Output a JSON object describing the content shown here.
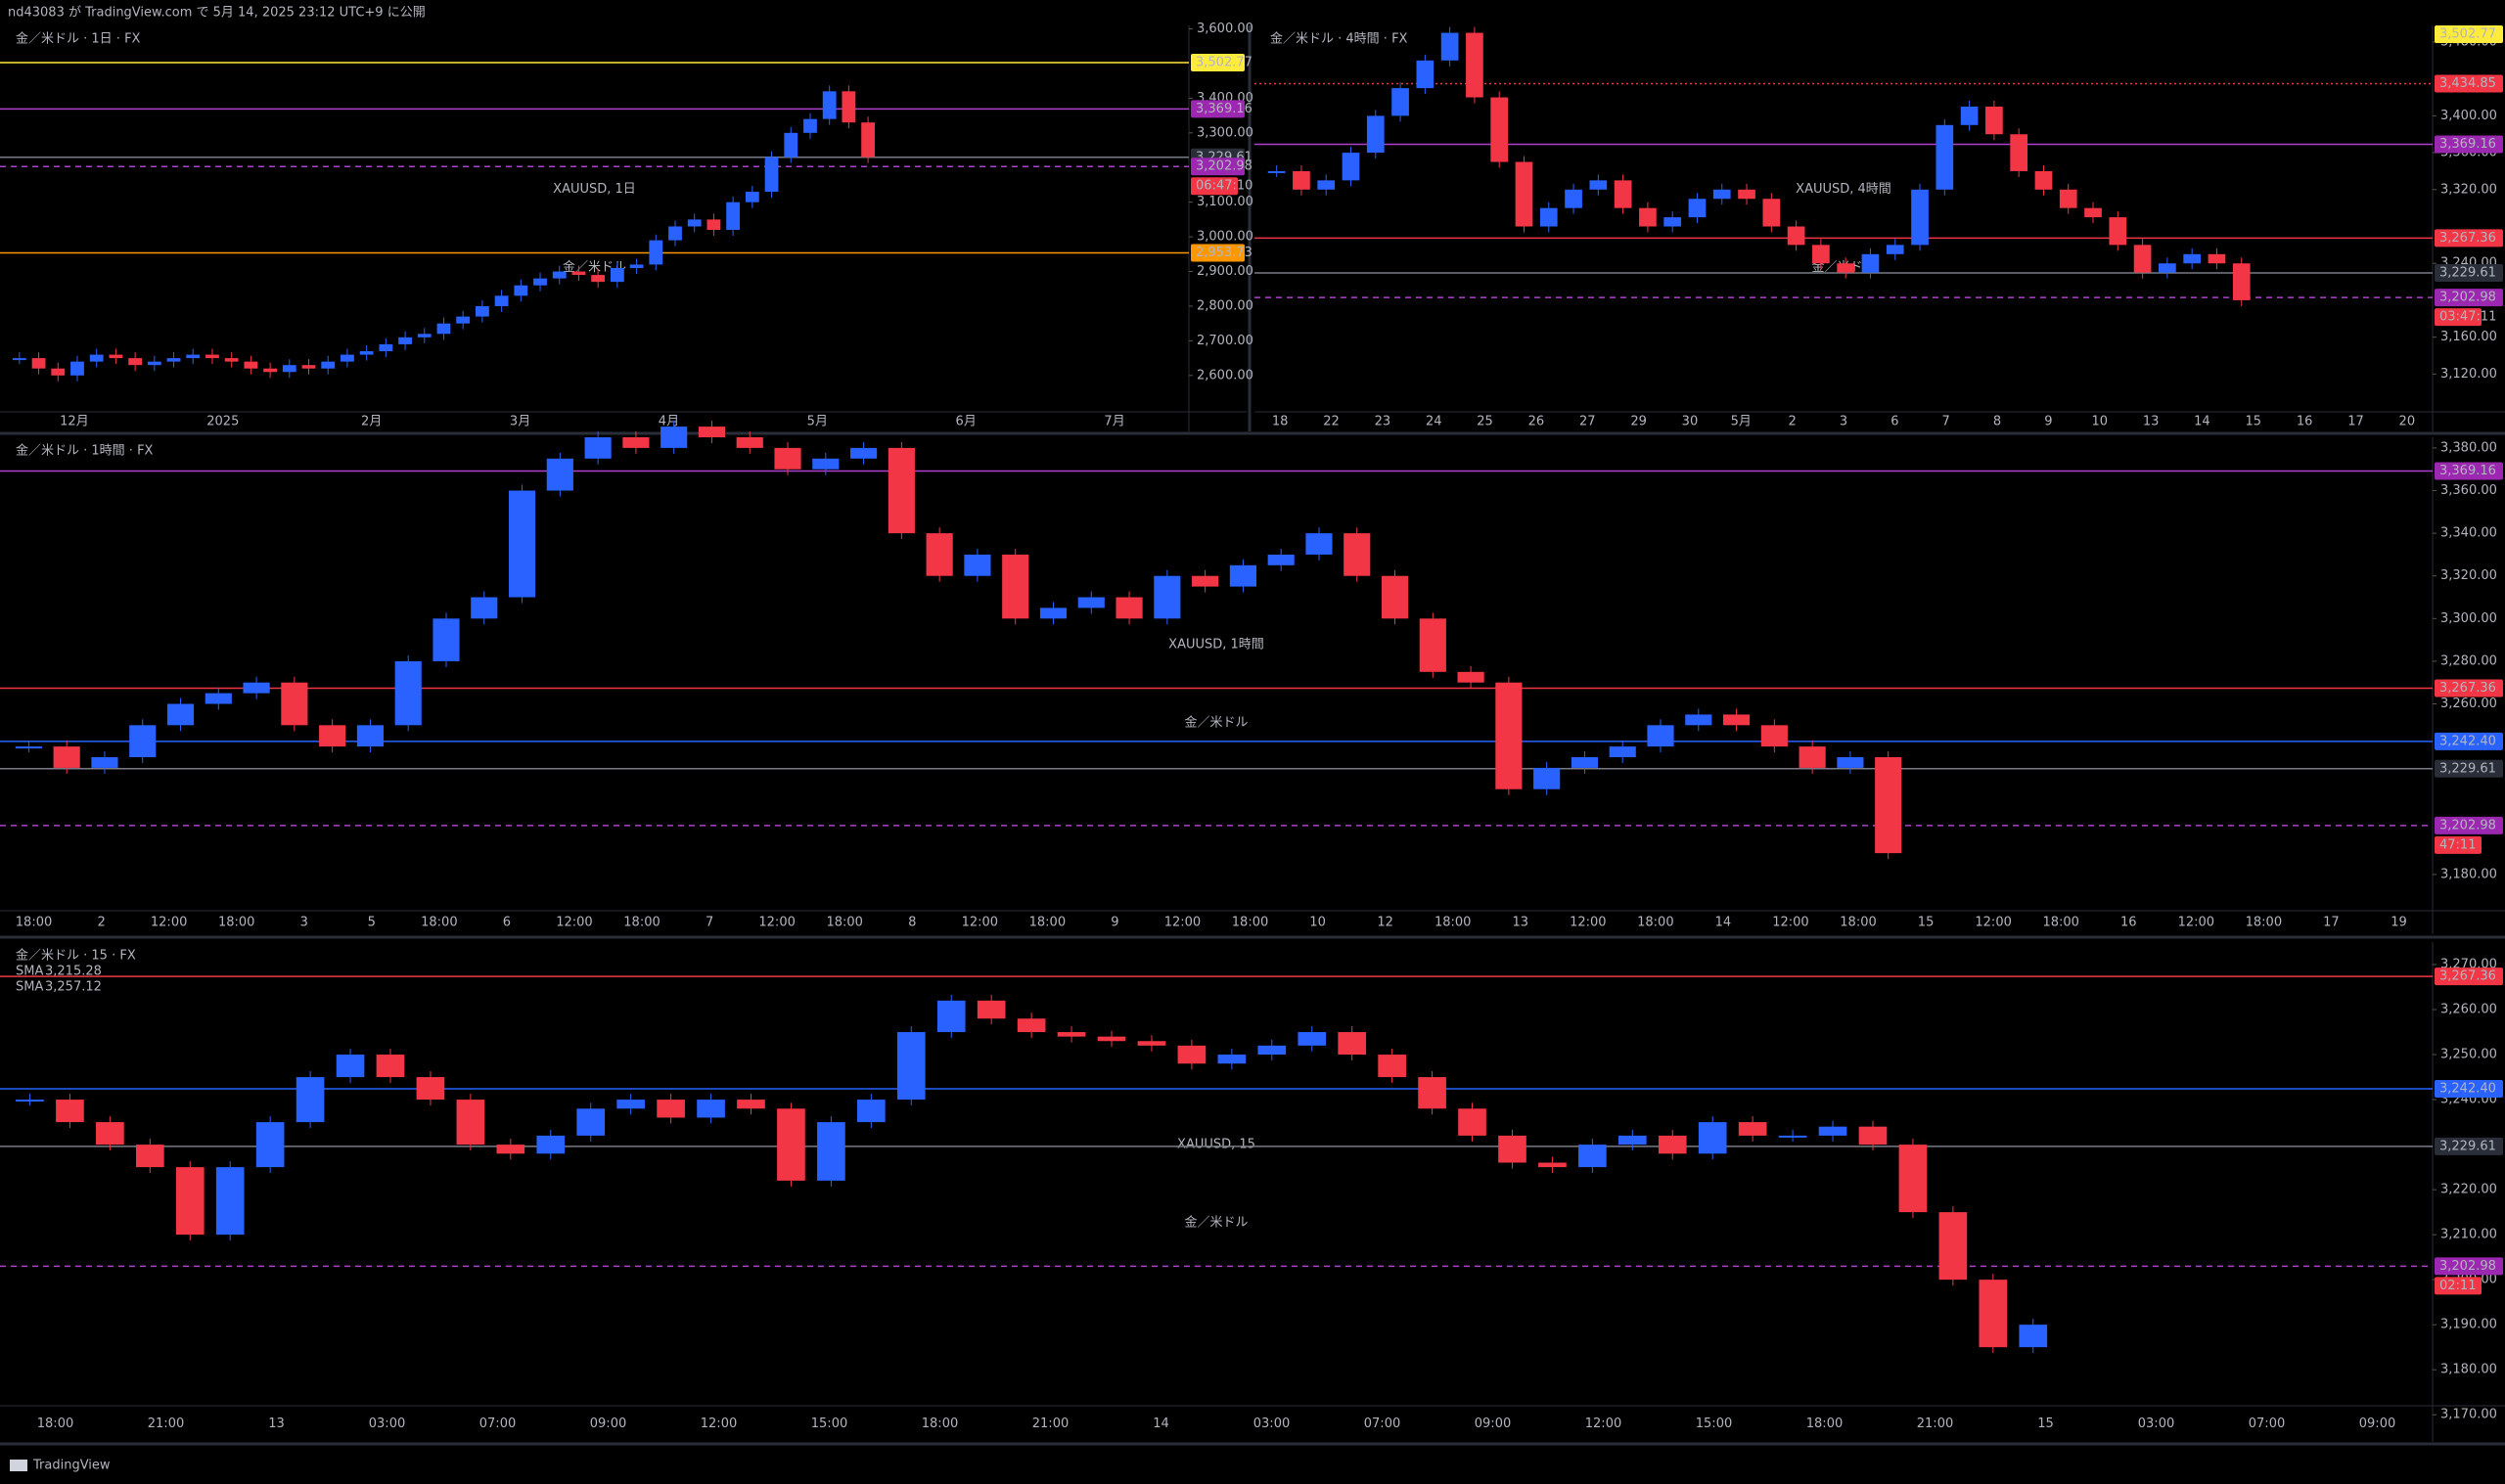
{
  "header": {
    "text": "nd43083 が TradingView.com で 5月 14, 2025 23:12 UTC+9 に公開"
  },
  "footer": {
    "brand": "TradingView"
  },
  "style": {
    "up_color": "#2962ff",
    "down_color": "#f23645"
  },
  "panels": [
    {
      "title": "金／米ドル · 1日 · FX",
      "watermark": "XAUUSD, 1日",
      "watermark_name": "金／米ドル",
      "ylim": [
        2495,
        3610
      ],
      "yticks": [
        {
          "value": 2600,
          "label": "2,600.00"
        },
        {
          "value": 2700,
          "label": "2,700.00"
        },
        {
          "value": 2800,
          "label": "2,800.00"
        },
        {
          "value": 2900,
          "label": "2,900.00"
        },
        {
          "value": 3000,
          "label": "3,000.00"
        },
        {
          "value": 3100,
          "label": "3,100.00"
        },
        {
          "value": 3300,
          "label": "3,300.00"
        },
        {
          "value": 3400,
          "label": "3,400.00"
        },
        {
          "value": 3600,
          "label": "3,600.00"
        }
      ],
      "x_labels": [
        "12月",
        "2025",
        "2月",
        "3月",
        "4月",
        "5月",
        "6月",
        "7月"
      ],
      "closes": [
        2650,
        2620,
        2600,
        2640,
        2660,
        2650,
        2630,
        2640,
        2650,
        2660,
        2650,
        2640,
        2620,
        2610,
        2630,
        2620,
        2640,
        2660,
        2670,
        2690,
        2710,
        2720,
        2750,
        2770,
        2800,
        2830,
        2860,
        2880,
        2900,
        2890,
        2870,
        2910,
        2920,
        2990,
        3030,
        3050,
        3020,
        3100,
        3130,
        3230,
        3300,
        3340,
        3420,
        3330,
        3230
      ],
      "levels": [
        {
          "value": 3502.77,
          "color": "#ffeb3b",
          "style": "solid"
        },
        {
          "value": 3369.16,
          "color": "#b040d0",
          "style": "solid"
        },
        {
          "value": 3229.61,
          "color": "#787b86",
          "style": "solid"
        },
        {
          "value": 3202.98,
          "color": "#b040d0",
          "style": "dashed"
        },
        {
          "value": 2953.73,
          "color": "#ff9800",
          "style": "solid"
        }
      ],
      "price_labels": [
        {
          "value": 3502.77,
          "label": "3,502.77",
          "color": "#ffeb3b"
        },
        {
          "value": 3369.16,
          "label": "3,369.16",
          "color": "#9c27b0"
        },
        {
          "value": 3229.61,
          "label": "3,229.61",
          "color": "#2a2e39"
        },
        {
          "value": 3202.98,
          "label": "3,202.98",
          "color": "#9c27b0"
        },
        {
          "value": 2953.73,
          "label": "2,953.73",
          "color": "#ff9800"
        }
      ],
      "countdown": "06:47:10"
    },
    {
      "title": "金／米ドル · 4時間 · FX",
      "watermark": "XAUUSD, 4時間",
      "watermark_name": "金／米ドル",
      "ylim": [
        3079,
        3498
      ],
      "yticks": [
        {
          "value": 3120,
          "label": "3,120.00"
        },
        {
          "value": 3160,
          "label": "3,160.00"
        },
        {
          "value": 3240,
          "label": "3,240.00"
        },
        {
          "value": 3320,
          "label": "3,320.00"
        },
        {
          "value": 3360,
          "label": "3,360.00"
        },
        {
          "value": 3400,
          "label": "3,400.00"
        },
        {
          "value": 3480,
          "label": "3,480.00"
        }
      ],
      "x_labels": [
        "18",
        "22",
        "23",
        "24",
        "25",
        "26",
        "27",
        "29",
        "30",
        "5月",
        "2",
        "3",
        "6",
        "7",
        "8",
        "9",
        "10",
        "13",
        "14",
        "15",
        "16",
        "17",
        "20"
      ],
      "closes": [
        3340,
        3320,
        3330,
        3360,
        3400,
        3430,
        3460,
        3490,
        3420,
        3350,
        3280,
        3300,
        3320,
        3330,
        3300,
        3280,
        3290,
        3310,
        3320,
        3310,
        3280,
        3260,
        3240,
        3230,
        3250,
        3260,
        3320,
        3390,
        3410,
        3380,
        3340,
        3320,
        3300,
        3290,
        3260,
        3230,
        3240,
        3250,
        3240,
        3200
      ],
      "levels": [
        {
          "value": 3434.85,
          "color": "#f23645",
          "style": "dotted"
        },
        {
          "value": 3369.16,
          "color": "#b040d0",
          "style": "solid"
        },
        {
          "value": 3267.36,
          "color": "#f23645",
          "style": "solid"
        },
        {
          "value": 3229.61,
          "color": "#787b86",
          "style": "solid"
        },
        {
          "value": 3202.98,
          "color": "#b040d0",
          "style": "dashed"
        }
      ],
      "price_labels": [
        {
          "value": 3502.77,
          "label": "3,502.77",
          "color": "#ffeb3b"
        },
        {
          "value": 3434.85,
          "label": "3,434.85",
          "color": "#f23645"
        },
        {
          "value": 3369.16,
          "label": "3,369.16",
          "color": "#9c27b0"
        },
        {
          "value": 3267.36,
          "label": "3,267.36",
          "color": "#f23645"
        },
        {
          "value": 3229.61,
          "label": "3,229.61",
          "color": "#2a2e39"
        },
        {
          "value": 3202.98,
          "label": "3,202.98",
          "color": "#9c27b0"
        }
      ],
      "countdown": "03:47:11"
    },
    {
      "title": "金／米ドル · 1時間 · FX",
      "watermark": "XAUUSD, 1時間",
      "watermark_name": "金／米ドル",
      "ylim": [
        3163,
        3385
      ],
      "yticks": [
        {
          "value": 3180,
          "label": "3,180.00"
        },
        {
          "value": 3260,
          "label": "3,260.00"
        },
        {
          "value": 3280,
          "label": "3,280.00"
        },
        {
          "value": 3300,
          "label": "3,300.00"
        },
        {
          "value": 3320,
          "label": "3,320.00"
        },
        {
          "value": 3340,
          "label": "3,340.00"
        },
        {
          "value": 3360,
          "label": "3,360.00"
        },
        {
          "value": 3380,
          "label": "3,380.00"
        }
      ],
      "x_labels": [
        "18:00",
        "2",
        "12:00",
        "18:00",
        "3",
        "5",
        "18:00",
        "6",
        "12:00",
        "18:00",
        "7",
        "12:00",
        "18:00",
        "8",
        "12:00",
        "18:00",
        "9",
        "12:00",
        "18:00",
        "10",
        "12",
        "18:00",
        "13",
        "12:00",
        "18:00",
        "14",
        "12:00",
        "18:00",
        "15",
        "12:00",
        "18:00",
        "16",
        "12:00",
        "18:00",
        "17",
        "19"
      ],
      "closes": [
        3240,
        3230,
        3235,
        3250,
        3260,
        3265,
        3270,
        3250,
        3240,
        3250,
        3280,
        3300,
        3310,
        3360,
        3375,
        3385,
        3380,
        3390,
        3385,
        3380,
        3370,
        3375,
        3380,
        3340,
        3320,
        3330,
        3300,
        3305,
        3310,
        3300,
        3320,
        3315,
        3325,
        3330,
        3340,
        3320,
        3300,
        3275,
        3270,
        3220,
        3230,
        3235,
        3240,
        3250,
        3255,
        3250,
        3240,
        3230,
        3235,
        3190
      ],
      "levels": [
        {
          "value": 3369.16,
          "color": "#b040d0",
          "style": "solid"
        },
        {
          "value": 3267.36,
          "color": "#f23645",
          "style": "solid"
        },
        {
          "value": 3242.4,
          "color": "#2962ff",
          "style": "solid"
        },
        {
          "value": 3229.61,
          "color": "#787b86",
          "style": "solid"
        },
        {
          "value": 3202.98,
          "color": "#b040d0",
          "style": "dashed"
        }
      ],
      "price_labels": [
        {
          "value": 3369.16,
          "label": "3,369.16",
          "color": "#9c27b0"
        },
        {
          "value": 3267.36,
          "label": "3,267.36",
          "color": "#f23645"
        },
        {
          "value": 3242.4,
          "label": "3,242.40",
          "color": "#2962ff"
        },
        {
          "value": 3229.61,
          "label": "3,229.61",
          "color": "#2a2e39"
        },
        {
          "value": 3202.98,
          "label": "3,202.98",
          "color": "#9c27b0"
        }
      ],
      "countdown": "47:11"
    },
    {
      "title": "金／米ドル · 15 · FX",
      "legend": [
        {
          "name": "SMA",
          "label": "3,215.28",
          "color": "#2962ff"
        },
        {
          "name": "SMA",
          "label": "3,257.12",
          "color": "#f23645"
        }
      ],
      "watermark": "XAUUSD, 15",
      "watermark_name": "金／米ドル",
      "ylim": [
        3172,
        3275
      ],
      "yticks": [
        {
          "value": 3170,
          "label": "3,170.00"
        },
        {
          "value": 3180,
          "label": "3,180.00"
        },
        {
          "value": 3190,
          "label": "3,190.00"
        },
        {
          "value": 3200,
          "label": "3,200.00"
        },
        {
          "value": 3210,
          "label": "3,210.00"
        },
        {
          "value": 3220,
          "label": "3,220.00"
        },
        {
          "value": 3240,
          "label": "3,240.00"
        },
        {
          "value": 3250,
          "label": "3,250.00"
        },
        {
          "value": 3260,
          "label": "3,260.00"
        },
        {
          "value": 3270,
          "label": "3,270.00"
        }
      ],
      "x_labels": [
        "18:00",
        "21:00",
        "13",
        "03:00",
        "07:00",
        "09:00",
        "12:00",
        "15:00",
        "18:00",
        "21:00",
        "14",
        "03:00",
        "07:00",
        "09:00",
        "12:00",
        "15:00",
        "18:00",
        "21:00",
        "15",
        "03:00",
        "07:00",
        "09:00"
      ],
      "closes": [
        3240,
        3235,
        3230,
        3225,
        3210,
        3225,
        3235,
        3245,
        3250,
        3245,
        3240,
        3230,
        3228,
        3232,
        3238,
        3240,
        3236,
        3240,
        3238,
        3222,
        3235,
        3240,
        3255,
        3262,
        3258,
        3255,
        3254,
        3253,
        3252,
        3248,
        3250,
        3252,
        3255,
        3250,
        3245,
        3238,
        3232,
        3226,
        3225,
        3230,
        3232,
        3228,
        3235,
        3232,
        3232,
        3234,
        3230,
        3215,
        3200,
        3185,
        3190
      ],
      "levels": [
        {
          "value": 3267.36,
          "color": "#f23645",
          "style": "solid"
        },
        {
          "value": 3242.4,
          "color": "#2962ff",
          "style": "solid"
        },
        {
          "value": 3229.61,
          "color": "#787b86",
          "style": "solid"
        },
        {
          "value": 3202.98,
          "color": "#b040d0",
          "style": "dashed"
        }
      ],
      "price_labels": [
        {
          "value": 3267.36,
          "label": "3,267.36",
          "color": "#f23645"
        },
        {
          "value": 3242.4,
          "label": "3,242.40",
          "color": "#2962ff"
        },
        {
          "value": 3229.61,
          "label": "3,229.61",
          "color": "#2a2e39"
        },
        {
          "value": 3202.98,
          "label": "3,202.98",
          "color": "#9c27b0"
        }
      ],
      "countdown": "02:11"
    }
  ]
}
